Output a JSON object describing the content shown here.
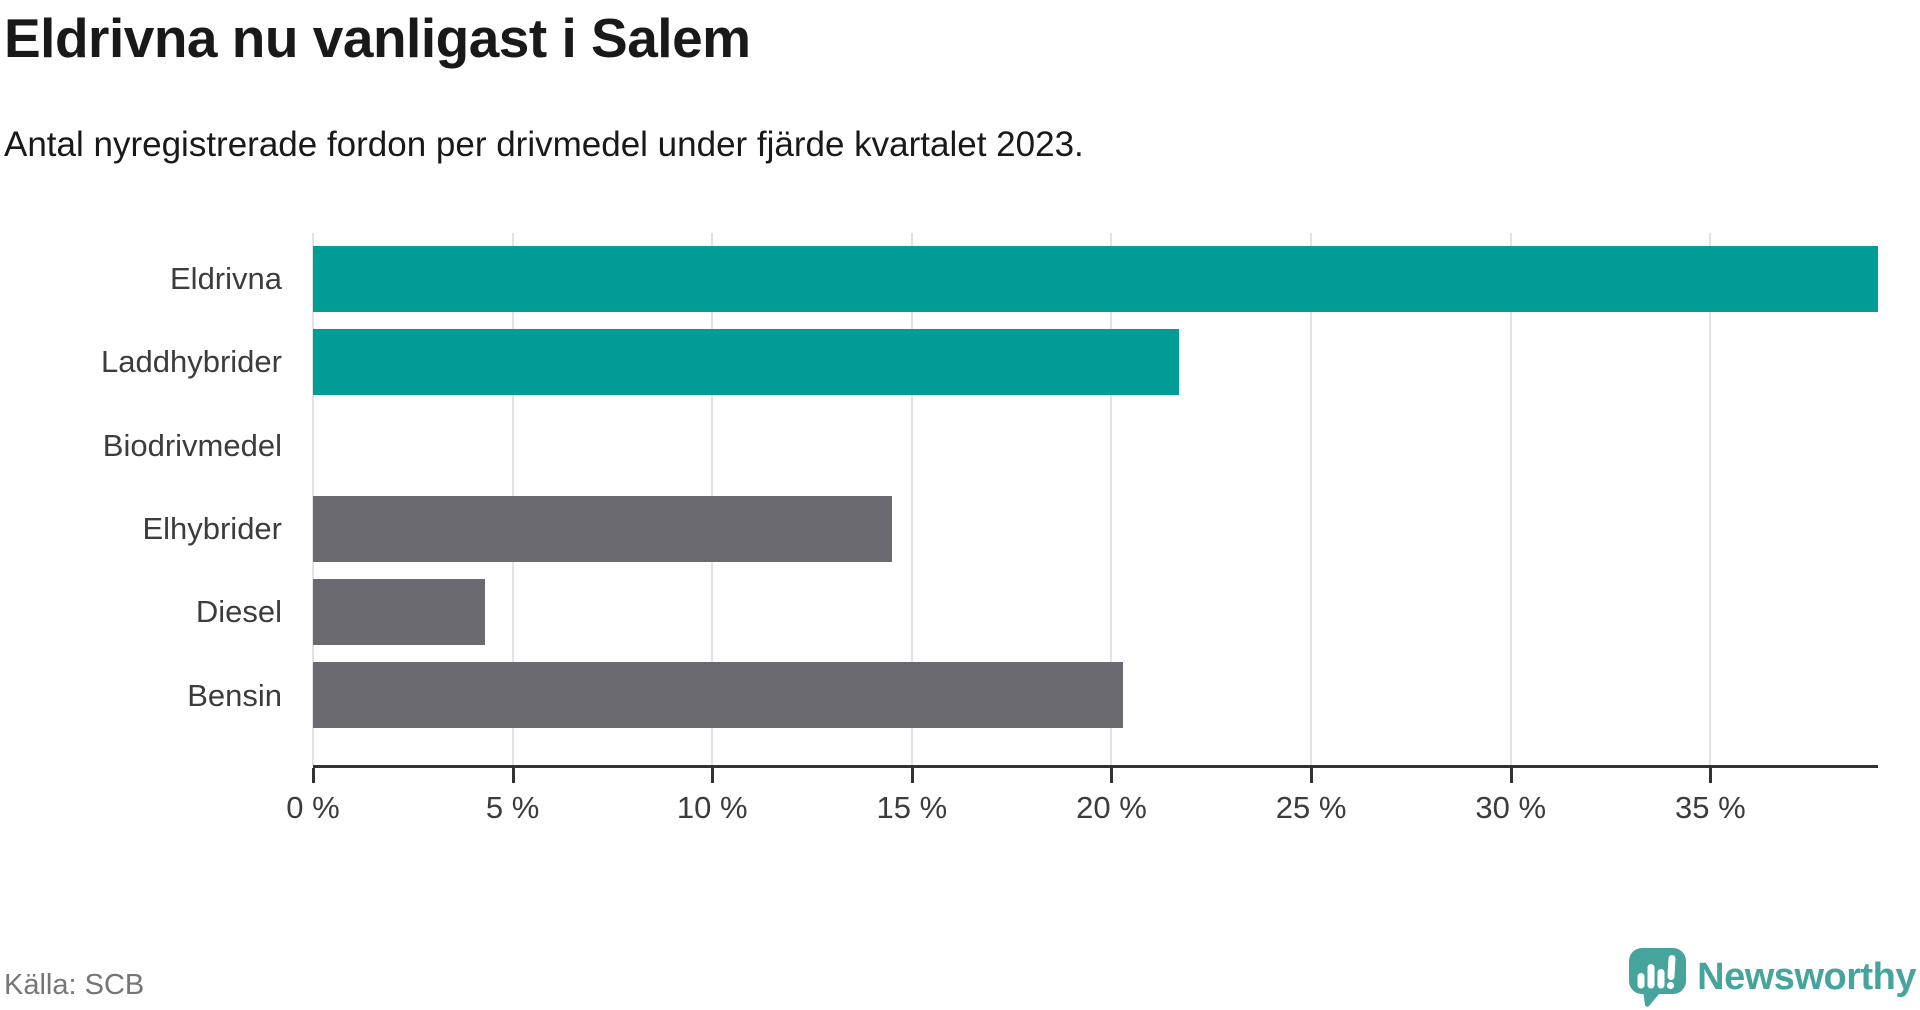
{
  "header": {
    "title": "Eldrivna nu vanligast i Salem",
    "subtitle": "Antal nyregistrerade fordon per drivmedel under fjärde kvartalet 2023."
  },
  "footer": {
    "source": "Källa: SCB",
    "brand_name": "Newsworthy"
  },
  "colors": {
    "teal_bar": "#009c95",
    "gray_bar": "#6a6a70",
    "gridline": "#e2e2e2",
    "axis": "#333333",
    "label": "#3c3c3c",
    "brand": "#46a49c"
  },
  "chart_data": {
    "type": "bar",
    "orientation": "horizontal",
    "title": "Eldrivna nu vanligast i Salem",
    "subtitle": "Antal nyregistrerade fordon per drivmedel under fjärde kvartalet 2023.",
    "unit": "%",
    "categories": [
      "Eldrivna",
      "Laddhybrider",
      "Biodrivmedel",
      "Elhybrider",
      "Diesel",
      "Bensin"
    ],
    "values": [
      39.2,
      21.7,
      0,
      14.5,
      4.3,
      20.3
    ],
    "bar_colors": [
      "#009c95",
      "#009c95",
      "#009c95",
      "#6a6a70",
      "#6a6a70",
      "#6a6a70"
    ],
    "xlim": [
      0,
      39.2
    ],
    "x_tick_values": [
      0,
      5,
      10,
      15,
      20,
      25,
      30,
      35
    ],
    "x_tick_labels": [
      "0 %",
      "5 %",
      "10 %",
      "15 %",
      "20 %",
      "25 %",
      "30 %",
      "35 %"
    ],
    "grid": "vertical",
    "legend": "none",
    "source": "Källa: SCB"
  }
}
